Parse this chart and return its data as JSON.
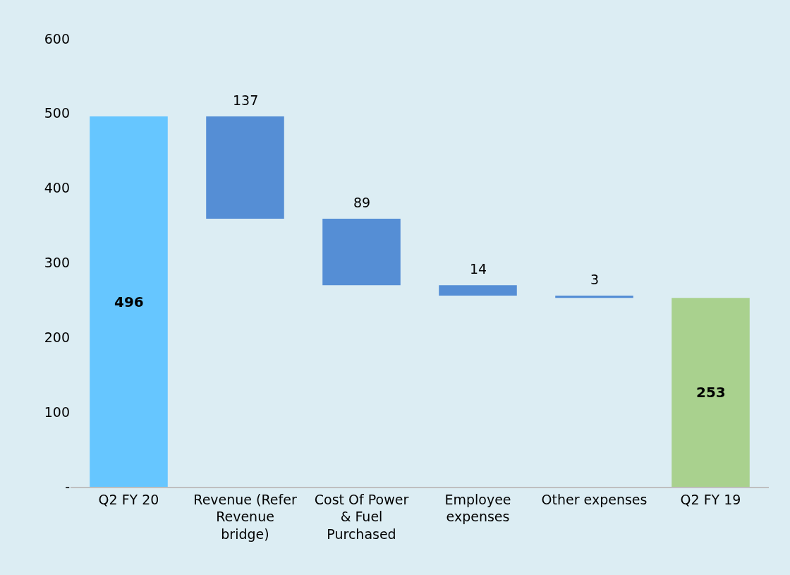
{
  "chart_data": {
    "type": "bar",
    "categories": [
      "Q2 FY 20",
      "Revenue (Refer Revenue bridge)",
      "Cost Of Power & Fuel Purchased",
      "Employee expenses",
      "Other expenses",
      "Q2 FY 19"
    ],
    "values": [
      496,
      137,
      89,
      14,
      3,
      253
    ],
    "base": [
      0,
      359,
      270,
      256,
      253,
      0
    ],
    "colors": [
      "#66c6ff",
      "#558ed5",
      "#558ed5",
      "#558ed5",
      "#558ed5",
      "#a9d18e"
    ],
    "data_labels": true,
    "ylim": [
      0,
      600
    ],
    "yticks": [
      {
        "value": 0,
        "label": "-"
      },
      100,
      200,
      300,
      400,
      500,
      600
    ],
    "grid": false
  }
}
